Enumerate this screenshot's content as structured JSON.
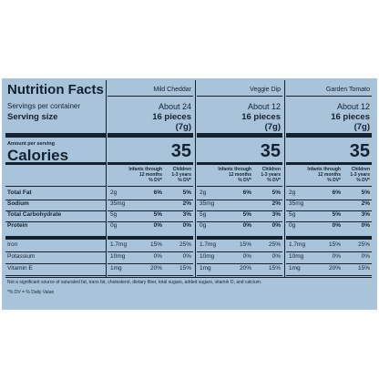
{
  "title": "Nutrition Facts",
  "servings_label": "Servings per container",
  "serving_size_label": "Serving size",
  "amount_label": "Amount per serving",
  "calories_label": "Calories",
  "infants_header": [
    "Infants through",
    "12 months",
    "% DV*"
  ],
  "children_header": [
    "Children",
    "1-3 years",
    "% DV*"
  ],
  "nutrient_labels": [
    "Total Fat",
    "Sodium",
    "Total Carbohydrate",
    "Protein"
  ],
  "vitamin_labels": [
    "Iron",
    "Potassium",
    "Vitamin E"
  ],
  "products": [
    {
      "name": "Mild Cheddar",
      "servings": "About 24",
      "serving_size": "16 pieces",
      "weight": "(7g)",
      "calories": 35,
      "nutrients": [
        [
          "2g",
          "6%",
          "5%"
        ],
        [
          "35mg",
          null,
          "2%"
        ],
        [
          "5g",
          "5%",
          "3%"
        ],
        [
          "0g",
          "0%",
          "0%"
        ]
      ],
      "vitamins": [
        [
          "1.7mg",
          "15%",
          "25%"
        ],
        [
          "10mg",
          "0%",
          "0%"
        ],
        [
          "1mg",
          "20%",
          "15%"
        ]
      ]
    },
    {
      "name": "Veggie Dip",
      "servings": "About 12",
      "serving_size": "16 pieces",
      "weight": "(7g)",
      "calories": 35,
      "nutrients": [
        [
          "2g",
          "6%",
          "5%"
        ],
        [
          "35mg",
          null,
          "2%"
        ],
        [
          "5g",
          "5%",
          "3%"
        ],
        [
          "0g",
          "0%",
          "0%"
        ]
      ],
      "vitamins": [
        [
          "1.7mg",
          "15%",
          "25%"
        ],
        [
          "10mg",
          "0%",
          "0%"
        ],
        [
          "1mg",
          "20%",
          "15%"
        ]
      ]
    },
    {
      "name": "Garden Tomato",
      "servings": "About 12",
      "serving_size": "16 pieces",
      "weight": "(7g)",
      "calories": 35,
      "nutrients": [
        [
          "2g",
          "6%",
          "5%"
        ],
        [
          "35mg",
          null,
          "2%"
        ],
        [
          "5g",
          "5%",
          "3%"
        ],
        [
          "0g",
          "0%",
          "0%"
        ]
      ],
      "vitamins": [
        [
          "1.7mg",
          "15%",
          "25%"
        ],
        [
          "10mg",
          "0%",
          "0%"
        ],
        [
          "1mg",
          "20%",
          "15%"
        ]
      ]
    }
  ],
  "footnotes": [
    "Not a significant source of saturated fat, trans fat, cholesterol, dietary fiber, total sugars, added sugars, vitamin D, and calcium.",
    "*% DV = % Daily Value"
  ]
}
